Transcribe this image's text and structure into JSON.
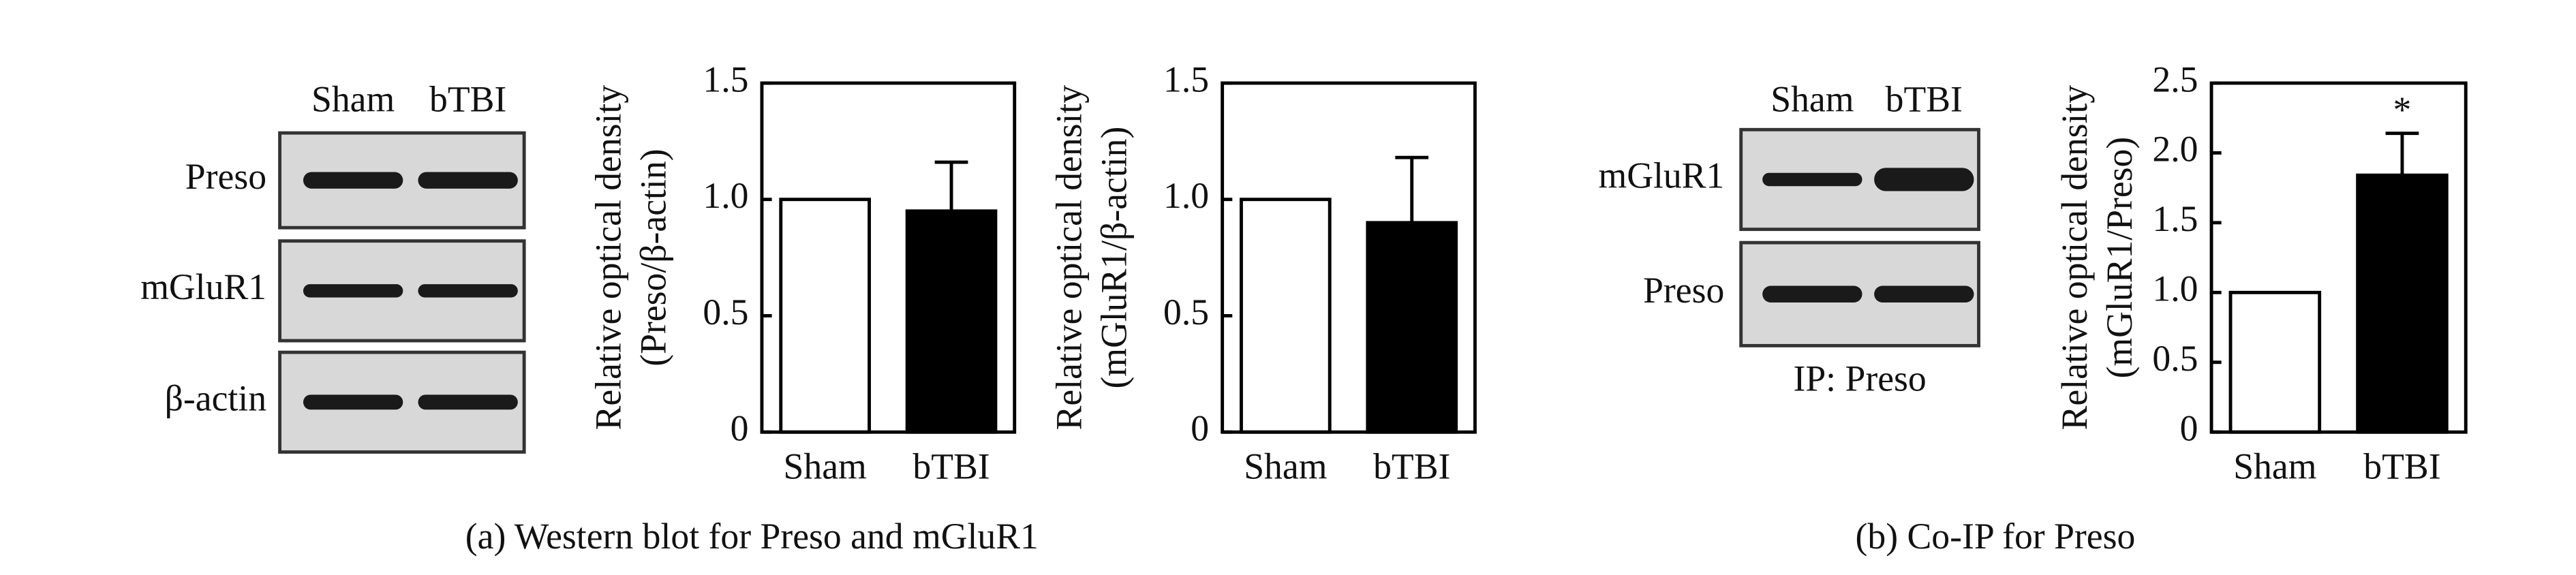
{
  "chart_data": [
    {
      "type": "bar",
      "ylabel": [
        "Relative optical density",
        "(Preso/β-actin)"
      ],
      "categories": [
        "Sham",
        "bTBI"
      ],
      "values": [
        1,
        0.95
      ],
      "errors": [
        null,
        0.21
      ],
      "colors": [
        "#ffffff",
        "#000000"
      ],
      "ylim": [
        0,
        1.5
      ],
      "yticks": [
        0,
        0.5,
        {
          "value": 1,
          "label": "1.0"
        },
        1.5
      ]
    },
    {
      "type": "bar",
      "ylabel": [
        "Relative optical density",
        "(mGluR1/β-actin)"
      ],
      "categories": [
        "Sham",
        "bTBI"
      ],
      "values": [
        1,
        0.9
      ],
      "errors": [
        null,
        0.28
      ],
      "colors": [
        "#ffffff",
        "#000000"
      ],
      "ylim": [
        0,
        1.5
      ],
      "yticks": [
        0,
        0.5,
        {
          "value": 1,
          "label": "1.0"
        },
        1.5
      ]
    },
    {
      "type": "bar",
      "ylabel": [
        "Relative optical density",
        "(mGluR1/Preso)"
      ],
      "categories": [
        "Sham",
        "bTBI"
      ],
      "values": [
        1,
        1.84
      ],
      "errors": [
        null,
        0.3
      ],
      "colors": [
        "#ffffff",
        "#000000"
      ],
      "ylim": [
        0,
        2.5
      ],
      "yticks": [
        0,
        0.5,
        {
          "value": 1,
          "label": "1.0"
        },
        1.5,
        {
          "value": 2,
          "label": "2.0"
        },
        2.5
      ],
      "annotation": "*"
    }
  ],
  "blots": [
    {
      "columns": [
        "Sham",
        "bTBI"
      ],
      "rows": [
        "Preso",
        "mGluR1",
        "β-actin"
      ]
    },
    {
      "columns": [
        "Sham",
        "bTBI"
      ],
      "rows": [
        "mGluR1",
        "Preso"
      ],
      "note": "IP: Preso"
    }
  ],
  "captions": [
    "(a) Western blot for Preso and mGluR1",
    "(b) Co-IP for Preso"
  ]
}
